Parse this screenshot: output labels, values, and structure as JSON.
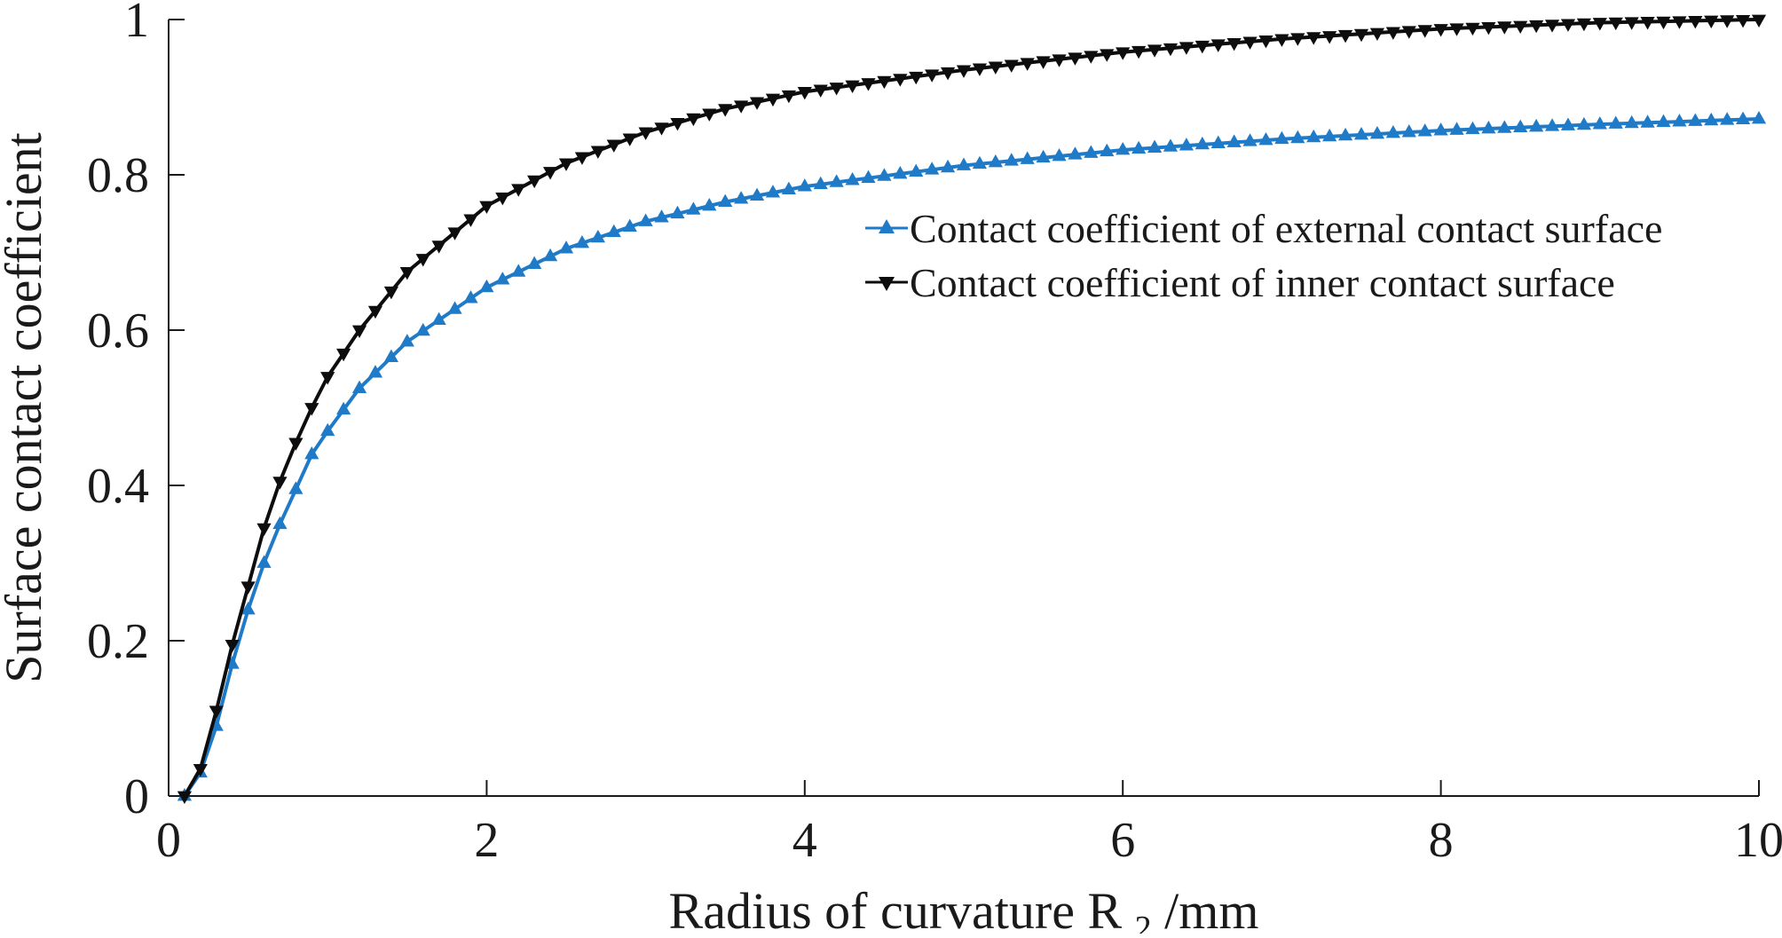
{
  "chart_data": {
    "type": "line",
    "title": "",
    "xlabel": "Radius of curvature",
    "xlabel_symbol": "R",
    "xlabel_subscript": "2",
    "xlabel_unit": "/mm",
    "ylabel": "Surface contact coefficient",
    "xlim": [
      0,
      10
    ],
    "ylim": [
      0,
      1
    ],
    "xticks": [
      "0",
      "2",
      "4",
      "6",
      "8",
      "10"
    ],
    "yticks": [
      "0",
      "0.2",
      "0.4",
      "0.6",
      "0.8",
      "1"
    ],
    "grid": false,
    "legend_position": "center-right",
    "x_step": 0.1,
    "series": [
      {
        "name": "Contact coefficient of external contact surface",
        "color": "#1f7ac8",
        "marker": "triangle-up",
        "control_points": [
          [
            0.1,
            0.0
          ],
          [
            0.2,
            0.03
          ],
          [
            0.3,
            0.09
          ],
          [
            0.4,
            0.17
          ],
          [
            0.5,
            0.24
          ],
          [
            0.6,
            0.3
          ],
          [
            0.7,
            0.35
          ],
          [
            0.8,
            0.395
          ],
          [
            0.9,
            0.44
          ],
          [
            1.0,
            0.47
          ],
          [
            1.2,
            0.525
          ],
          [
            1.5,
            0.585
          ],
          [
            2.0,
            0.655
          ],
          [
            2.5,
            0.705
          ],
          [
            3.0,
            0.74
          ],
          [
            3.5,
            0.765
          ],
          [
            4.0,
            0.785
          ],
          [
            5.0,
            0.812
          ],
          [
            6.0,
            0.832
          ],
          [
            7.0,
            0.846
          ],
          [
            8.0,
            0.857
          ],
          [
            9.0,
            0.865
          ],
          [
            10.0,
            0.872
          ]
        ]
      },
      {
        "name": "Contact coefficient of inner contact surface",
        "color": "#0d0d0d",
        "marker": "triangle-down",
        "control_points": [
          [
            0.1,
            0.0
          ],
          [
            0.2,
            0.035
          ],
          [
            0.3,
            0.11
          ],
          [
            0.4,
            0.195
          ],
          [
            0.5,
            0.27
          ],
          [
            0.6,
            0.345
          ],
          [
            0.7,
            0.405
          ],
          [
            0.8,
            0.455
          ],
          [
            0.9,
            0.5
          ],
          [
            1.0,
            0.54
          ],
          [
            1.2,
            0.6
          ],
          [
            1.5,
            0.675
          ],
          [
            2.0,
            0.76
          ],
          [
            2.5,
            0.815
          ],
          [
            3.0,
            0.855
          ],
          [
            3.5,
            0.885
          ],
          [
            4.0,
            0.907
          ],
          [
            5.0,
            0.935
          ],
          [
            6.0,
            0.958
          ],
          [
            7.0,
            0.975
          ],
          [
            8.0,
            0.988
          ],
          [
            9.0,
            0.996
          ],
          [
            10.0,
            1.0
          ]
        ]
      }
    ]
  }
}
